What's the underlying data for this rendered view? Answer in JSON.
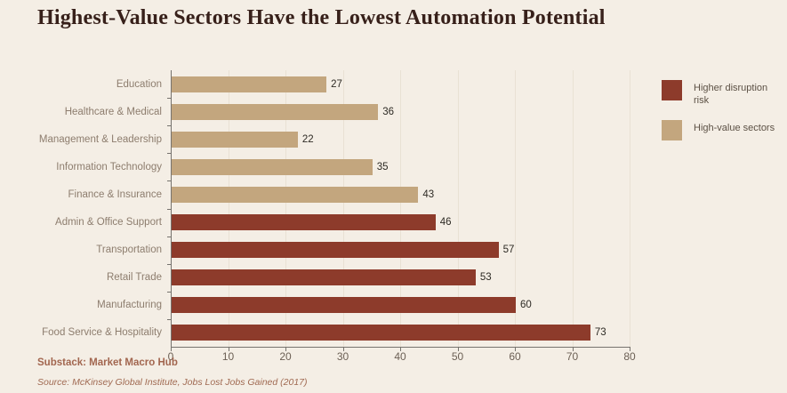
{
  "title": "Highest-Value Sectors Have the Lowest Automation Potential",
  "colors": {
    "background": "#f4eee5",
    "disruption": "#8d3b2b",
    "high_value": "#c3a67e",
    "title_text": "#37201a",
    "category_label": "#8d7d6e",
    "value_label": "#2d2a24",
    "axis": "#76736e",
    "tick_label": "#6c6055",
    "gridline": "#e9e1d4",
    "footer": "#a2664f"
  },
  "legend": {
    "items": [
      {
        "label": "Higher disruption risk",
        "color": "#8d3b2b",
        "group": "disruption"
      },
      {
        "label": "High-value sectors",
        "color": "#c3a67e",
        "group": "high_value"
      }
    ]
  },
  "footer": {
    "attribution": "Substack: Market Macro Hub",
    "source": "Source: McKinsey Global Institute, Jobs Lost Jobs Gained (2017)"
  },
  "chart_data": {
    "type": "bar",
    "orientation": "horizontal",
    "title": "Highest-Value Sectors Have the Lowest Automation Potential",
    "categories": [
      "Education",
      "Healthcare & Medical",
      "Management & Leadership",
      "Information Technology",
      "Finance & Insurance",
      "Admin & Office Support",
      "Transportation",
      "Retail Trade",
      "Manufacturing",
      "Food Service & Hospitality"
    ],
    "values": [
      27,
      36,
      22,
      35,
      43,
      46,
      57,
      53,
      60,
      73
    ],
    "value_groups": [
      "high_value",
      "high_value",
      "high_value",
      "high_value",
      "high_value",
      "disruption",
      "disruption",
      "disruption",
      "disruption",
      "disruption"
    ],
    "group_colors": {
      "disruption": "#8d3b2b",
      "high_value": "#c3a67e"
    },
    "xlabel": "",
    "ylabel": "",
    "xlim": [
      0,
      80
    ],
    "xticks": [
      0,
      10,
      20,
      30,
      40,
      50,
      60,
      70,
      80
    ],
    "grid": true,
    "legend_position": "right",
    "value_labels": true
  }
}
